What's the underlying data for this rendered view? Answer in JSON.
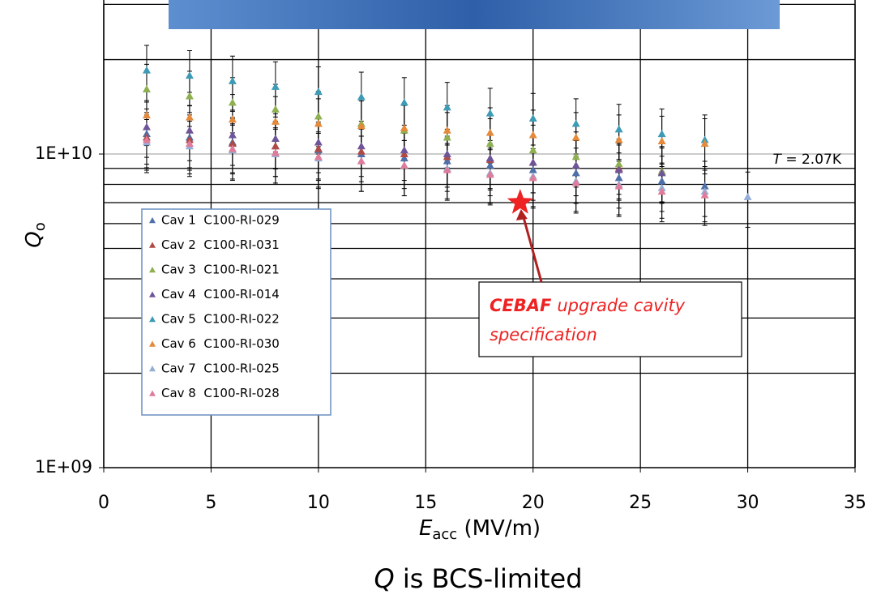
{
  "chart_data": {
    "type": "scatter",
    "x_label": {
      "symbol": "E",
      "subscript": "acc",
      "unit": "(MV/m)"
    },
    "y_label": {
      "symbol": "Q",
      "subscript": "o"
    },
    "caption": {
      "symbol": "Q",
      "text": "is BCS-limited"
    },
    "temperature_label": {
      "symbol": "T",
      "text": "= 2.07K"
    },
    "xlim": [
      0,
      35
    ],
    "xticks": [
      0,
      5,
      10,
      15,
      20,
      25,
      30,
      35
    ],
    "ylim": [
      1000000000.0,
      30000000000.0
    ],
    "log_y": true,
    "yticks": [
      {
        "value": 1000000000.0,
        "label": "1E+09"
      },
      {
        "value": 10000000000.0,
        "label": "1E+10"
      }
    ],
    "y_minor_grid": [
      2000000000.0,
      3000000000.0,
      4000000000.0,
      5000000000.0,
      6000000000.0,
      7000000000.0,
      8000000000.0,
      9000000000.0,
      20000000000.0,
      30000000000.0
    ],
    "grid": true,
    "legend": "left",
    "series": [
      {
        "name": "Cav 1  C100-RI-029",
        "color": "#4f6fa8",
        "error": 20,
        "x": [
          2,
          4,
          6,
          8,
          10,
          12,
          14,
          16,
          18,
          20,
          22,
          24,
          26,
          28
        ],
        "values": [
          11600000000.0,
          11300000000.0,
          10900000000.0,
          10600000000.0,
          10300000000.0,
          10000000000.0,
          9700000000.0,
          9500000000.0,
          9200000000.0,
          8900000000.0,
          8700000000.0,
          8400000000.0,
          8200000000.0,
          7900000000.0
        ]
      },
      {
        "name": "Cav 2  C100-RI-031",
        "color": "#b04a45",
        "error": 20,
        "x": [
          2,
          4,
          6,
          8,
          10,
          12,
          14,
          16,
          18,
          20,
          22,
          24,
          26
        ],
        "values": [
          11300000000.0,
          11100000000.0,
          10800000000.0,
          10600000000.0,
          10400000000.0,
          10200000000.0,
          10000000000.0,
          9800000000.0,
          9600000000.0,
          9400000000.0,
          9200000000.0,
          9000000000.0,
          8800000000.0
        ]
      },
      {
        "name": "Cav 3  C100-RI-021",
        "color": "#8eb04f",
        "error": 20,
        "x": [
          2,
          4,
          6,
          8,
          10,
          12,
          14,
          16,
          18,
          20,
          22,
          24,
          26
        ],
        "values": [
          16100000000.0,
          15300000000.0,
          14600000000.0,
          13900000000.0,
          13200000000.0,
          12500000000.0,
          11900000000.0,
          11300000000.0,
          10800000000.0,
          10300000000.0,
          9800000000.0,
          9300000000.0,
          8800000000.0
        ]
      },
      {
        "name": "Cav 4  C100-RI-014",
        "color": "#6e559a",
        "error": 20,
        "x": [
          2,
          4,
          6,
          8,
          10,
          12,
          14,
          16,
          18,
          20,
          22,
          24,
          26
        ],
        "values": [
          12200000000.0,
          11900000000.0,
          11500000000.0,
          11200000000.0,
          10900000000.0,
          10600000000.0,
          10300000000.0,
          10000000000.0,
          9700000000.0,
          9400000000.0,
          9200000000.0,
          8900000000.0,
          8700000000.0
        ]
      },
      {
        "name": "Cav 5  C100-RI-022",
        "color": "#3d9bb5",
        "error": 20,
        "x": [
          2,
          4,
          6,
          8,
          10,
          12,
          14,
          16,
          18,
          20,
          22,
          24,
          26,
          28
        ],
        "values": [
          18500000000.0,
          17800000000.0,
          17100000000.0,
          16400000000.0,
          15800000000.0,
          15200000000.0,
          14600000000.0,
          14100000000.0,
          13500000000.0,
          13000000000.0,
          12500000000.0,
          12000000000.0,
          11600000000.0,
          11100000000.0
        ]
      },
      {
        "name": "Cav 6  C100-RI-030",
        "color": "#e58a3a",
        "error": 20,
        "x": [
          2,
          4,
          6,
          8,
          10,
          12,
          14,
          16,
          18,
          20,
          22,
          24,
          26,
          28
        ],
        "values": [
          13300000000.0,
          13100000000.0,
          12900000000.0,
          12700000000.0,
          12500000000.0,
          12300000000.0,
          12100000000.0,
          11900000000.0,
          11700000000.0,
          11500000000.0,
          11300000000.0,
          11100000000.0,
          11000000000.0,
          10800000000.0
        ]
      },
      {
        "name": "Cav 7  C100-RI-025",
        "color": "#94aed6",
        "error": 20,
        "x": [
          2,
          4,
          6,
          8,
          10,
          12,
          14,
          16,
          18,
          20,
          22,
          24,
          26,
          28,
          30
        ],
        "values": [
          10900000000.0,
          10600000000.0,
          10300000000.0,
          10000000000.0,
          9700000000.0,
          9500000000.0,
          9200000000.0,
          9000000000.0,
          8700000000.0,
          8500000000.0,
          8200000000.0,
          8000000000.0,
          7800000000.0,
          7600000000.0,
          7300000000.0
        ]
      },
      {
        "name": "Cav 8  C100-RI-028",
        "color": "#e07c9a",
        "error": 20,
        "x": [
          2,
          4,
          6,
          8,
          10,
          12,
          14,
          16,
          18,
          20,
          22,
          24,
          26,
          28
        ],
        "values": [
          11100000000.0,
          10800000000.0,
          10400000000.0,
          10100000000.0,
          9800000000.0,
          9500000000.0,
          9200000000.0,
          8900000000.0,
          8600000000.0,
          8400000000.0,
          8100000000.0,
          7900000000.0,
          7600000000.0,
          7400000000.0
        ]
      }
    ],
    "annotation": {
      "bold": "CEBAF",
      "text": "upgrade cavity specification",
      "x": 19.4,
      "y": 7000000000.0,
      "color": "#ee2222"
    }
  }
}
